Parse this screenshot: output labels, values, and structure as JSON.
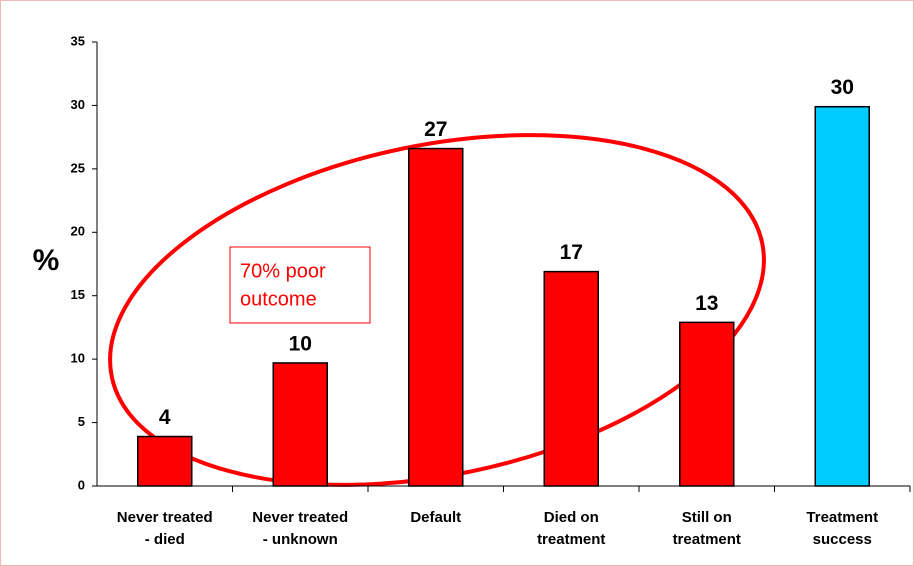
{
  "chart_data": {
    "type": "bar",
    "categories": [
      [
        "Never treated",
        "- died"
      ],
      [
        "Never treated",
        "- unknown"
      ],
      [
        "Default"
      ],
      [
        "Died on",
        "treatment"
      ],
      [
        "Still on",
        "treatment"
      ],
      [
        "Treatment",
        "success"
      ]
    ],
    "values": [
      3.9,
      9.7,
      26.6,
      16.9,
      12.9,
      29.9
    ],
    "value_labels": [
      "4",
      "10",
      "27",
      "17",
      "13",
      "30"
    ],
    "colors": [
      "#ff0000",
      "#ff0000",
      "#ff0000",
      "#ff0000",
      "#ff0000",
      "#00ccff"
    ],
    "ylabel": "%",
    "ylim": [
      0,
      35
    ],
    "yticks": [
      0,
      5,
      10,
      15,
      20,
      25,
      30,
      35
    ],
    "annotation": [
      "70% poor",
      "outcome"
    ]
  }
}
